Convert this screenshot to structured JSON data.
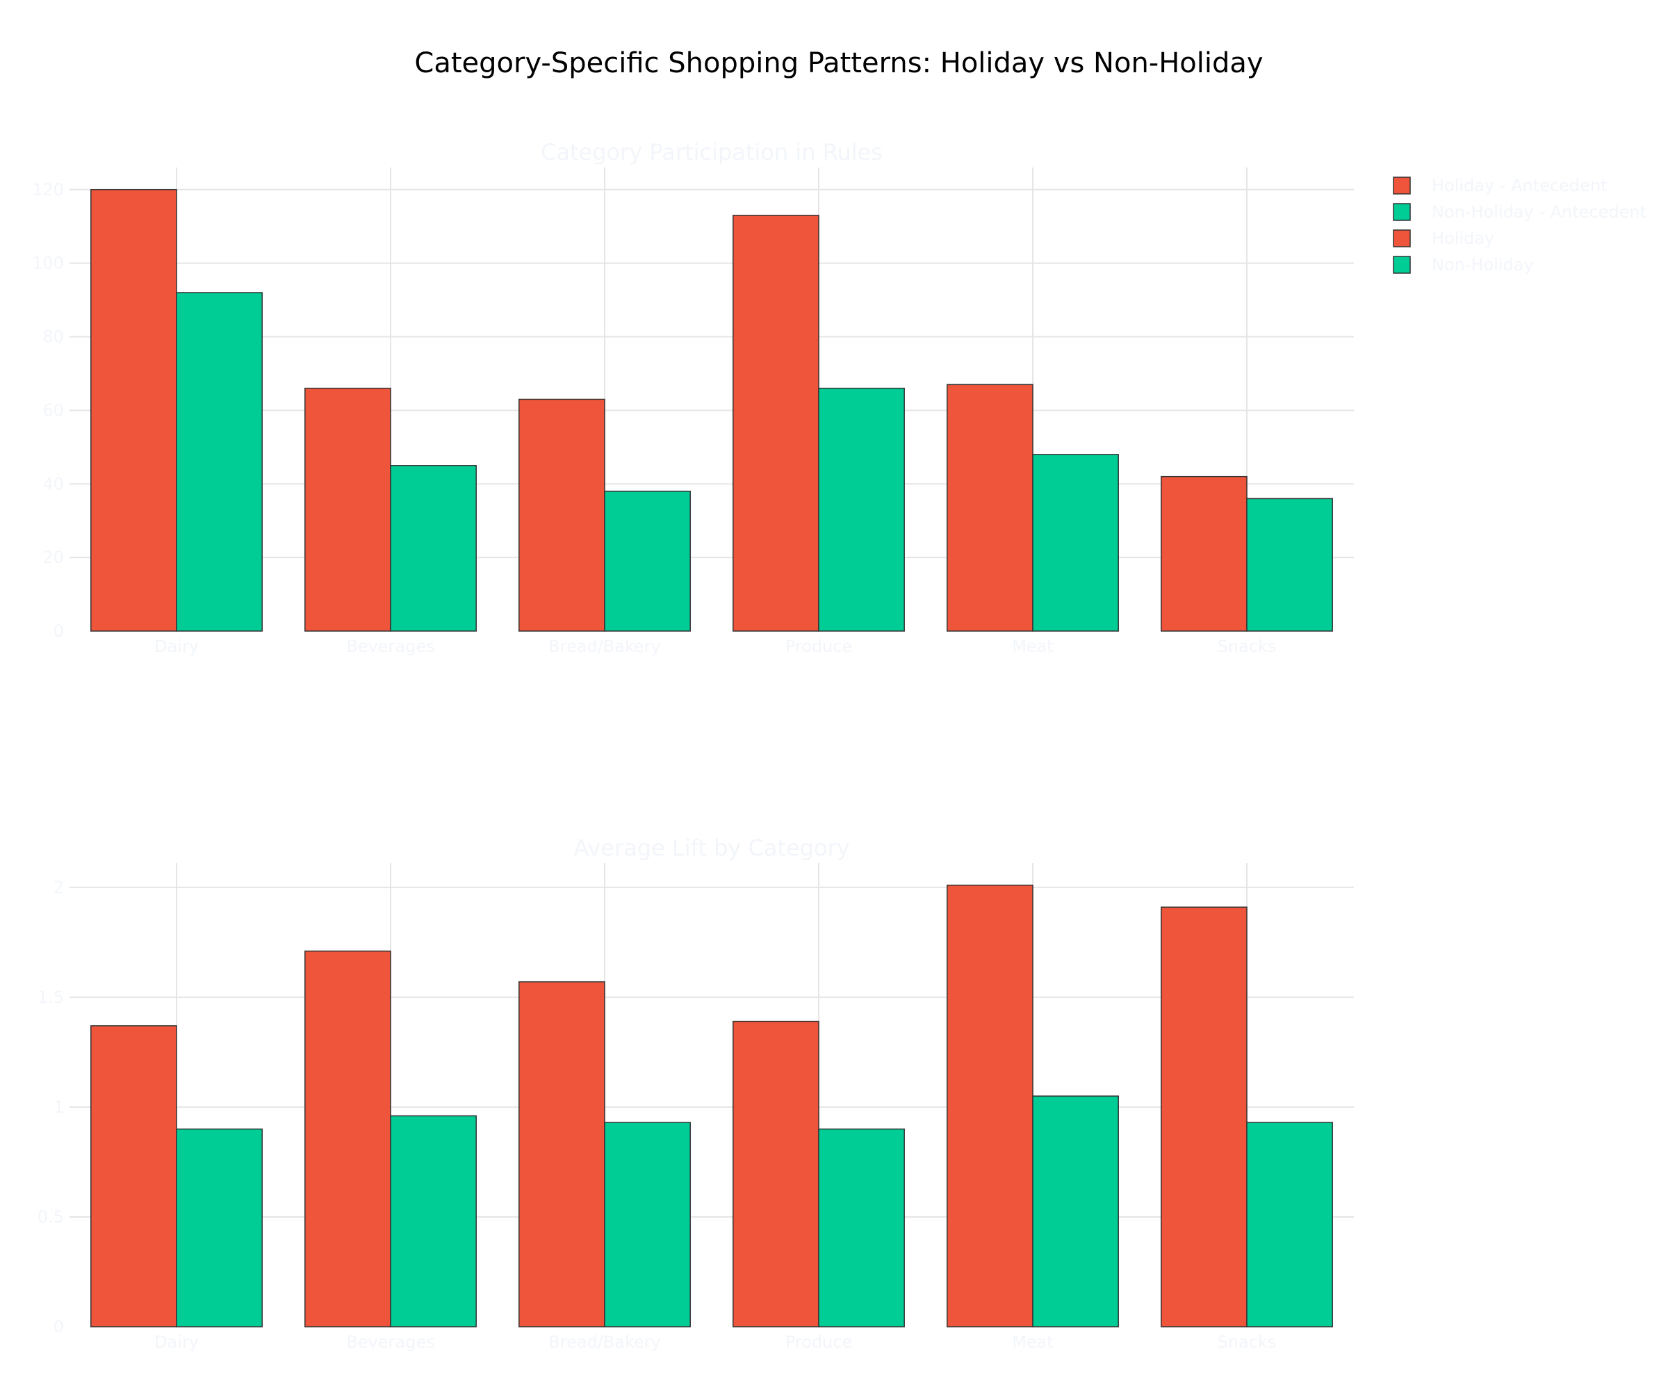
{
  "title": "Category-Specific Shopping Patterns: Holiday vs Non-Holiday",
  "colors": {
    "holiday": "#EF553B",
    "non_holiday": "#00CC96",
    "text": "#f2f5fa",
    "grid": "#e5e5e5",
    "bar_outline": "#333333"
  },
  "legend": {
    "placement": "top-right",
    "items": [
      {
        "label": "Holiday - Antecedent",
        "color": "#EF553B"
      },
      {
        "label": "Non-Holiday - Antecedent",
        "color": "#00CC96"
      },
      {
        "label": "Holiday",
        "color": "#EF553B"
      },
      {
        "label": "Non-Holiday",
        "color": "#00CC96"
      }
    ]
  },
  "chart_data": [
    {
      "type": "bar",
      "title": "Category Participation in Rules",
      "categories": [
        "Dairy",
        "Beverages",
        "Bread/Bakery",
        "Produce",
        "Meat",
        "Snacks"
      ],
      "series": [
        {
          "name": "Holiday - Antecedent",
          "values": [
            120,
            66,
            63,
            113,
            67,
            42
          ]
        },
        {
          "name": "Non-Holiday - Antecedent",
          "values": [
            92,
            45,
            38,
            66,
            48,
            36
          ]
        }
      ],
      "ylim": [
        0,
        126
      ],
      "yticks": [
        0,
        20,
        40,
        60,
        80,
        100,
        120
      ],
      "ytick_labels": [
        "0",
        "20",
        "40",
        "60",
        "80",
        "100",
        "120"
      ],
      "grid": true
    },
    {
      "type": "bar",
      "title": "Average Lift by Category",
      "categories": [
        "Dairy",
        "Beverages",
        "Bread/Bakery",
        "Produce",
        "Meat",
        "Snacks"
      ],
      "series": [
        {
          "name": "Holiday",
          "values": [
            1.37,
            1.71,
            1.57,
            1.39,
            2.01,
            1.91
          ]
        },
        {
          "name": "Non-Holiday",
          "values": [
            0.9,
            0.96,
            0.93,
            0.9,
            1.05,
            0.93
          ]
        }
      ],
      "ylim": [
        0,
        2.11
      ],
      "yticks": [
        0,
        0.5,
        1,
        1.5,
        2
      ],
      "ytick_labels": [
        "0",
        "0.5",
        "1",
        "1.5",
        "2"
      ],
      "grid": true
    }
  ]
}
